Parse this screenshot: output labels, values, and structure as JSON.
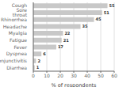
{
  "chart_data": {
    "type": "bar",
    "orientation": "horizontal",
    "categories": [
      "Diarrhea",
      "Conjunctivitis",
      "Dyspnea",
      "Fever",
      "Fatigue",
      "Myalgia",
      "Headache",
      "Rhinorrhea",
      "Sore throat",
      "Cough"
    ],
    "values": [
      1,
      2,
      6,
      17,
      21,
      22,
      35,
      45,
      51,
      55
    ],
    "color": "#c8c8c8",
    "xlabel": "% of respondents",
    "xlim": [
      0,
      60
    ],
    "xticks": [
      0,
      10,
      20,
      30,
      40,
      50,
      60
    ],
    "grid": true,
    "data_labels": true
  }
}
